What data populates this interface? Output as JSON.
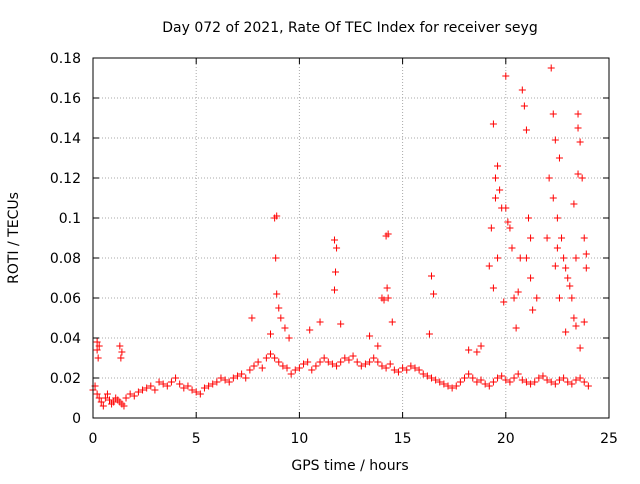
{
  "chart_data": {
    "type": "scatter",
    "title": "Day 072 of 2021, Rate Of TEC Index for receiver seyg",
    "xlabel": "GPS time / hours",
    "ylabel": "ROTI / TECUs",
    "xlim": [
      0,
      25
    ],
    "ylim": [
      0,
      0.18
    ],
    "xticks": [
      0,
      5,
      10,
      15,
      20,
      25
    ],
    "yticks": [
      0,
      0.02,
      0.04,
      0.06,
      0.08,
      0.1,
      0.12,
      0.14,
      0.16,
      0.18
    ],
    "xtick_labels": [
      "0",
      "5",
      "10",
      "15",
      "20",
      "25"
    ],
    "ytick_labels": [
      "0",
      "0.02",
      "0.04",
      "0.06",
      "0.08",
      "0.1",
      "0.12",
      "0.14",
      "0.16",
      "0.18"
    ],
    "grid": true,
    "legend": "none",
    "marker": "+",
    "color": "#ff0000",
    "x": [
      0.0,
      0.1,
      0.2,
      0.3,
      0.4,
      0.5,
      0.6,
      0.7,
      0.8,
      0.9,
      1.0,
      1.1,
      1.2,
      1.3,
      1.4,
      1.5,
      1.6,
      1.8,
      2.0,
      2.2,
      2.4,
      2.6,
      2.8,
      3.0,
      3.2,
      3.4,
      3.6,
      3.8,
      4.0,
      4.2,
      4.4,
      4.6,
      4.8,
      5.0,
      5.2,
      5.4,
      5.6,
      5.8,
      6.0,
      6.2,
      6.4,
      6.6,
      6.8,
      7.0,
      7.2,
      7.4,
      7.6,
      7.8,
      8.0,
      8.2,
      8.4,
      8.6,
      8.8,
      9.0,
      9.2,
      9.4,
      9.6,
      9.8,
      10.0,
      10.2,
      10.4,
      10.6,
      10.8,
      11.0,
      11.2,
      11.4,
      11.6,
      11.8,
      12.0,
      12.2,
      12.4,
      12.6,
      12.8,
      13.0,
      13.2,
      13.4,
      13.6,
      13.8,
      14.0,
      14.2,
      14.4,
      14.6,
      14.8,
      15.0,
      15.2,
      15.4,
      15.6,
      15.8,
      16.0,
      16.2,
      16.4,
      16.6,
      16.8,
      17.0,
      17.2,
      17.4,
      17.6,
      17.8,
      18.0,
      18.2,
      18.4,
      18.6,
      18.8,
      19.0,
      19.2,
      19.4,
      19.6,
      19.8,
      20.0,
      20.2,
      20.4,
      20.6,
      20.8,
      21.0,
      21.2,
      21.4,
      21.6,
      21.8,
      22.0,
      22.2,
      22.4,
      22.6,
      22.8,
      23.0,
      23.2,
      23.4,
      23.6,
      23.8,
      24.0,
      0.2,
      0.2,
      0.25,
      0.3,
      1.3,
      1.4,
      1.35,
      7.7,
      8.6,
      8.8,
      8.9,
      8.85,
      8.9,
      9.0,
      9.1,
      9.3,
      9.5,
      10.5,
      11.0,
      11.7,
      11.8,
      11.75,
      11.7,
      12.0,
      13.4,
      13.8,
      14.0,
      14.2,
      14.3,
      14.25,
      14.3,
      14.1,
      14.5,
      16.3,
      16.4,
      16.5,
      18.2,
      18.8,
      19.2,
      19.3,
      19.4,
      19.5,
      19.5,
      19.6,
      19.7,
      19.8,
      19.6,
      19.4,
      20.0,
      20.0,
      20.1,
      20.2,
      20.3,
      20.4,
      20.5,
      20.7,
      20.8,
      20.9,
      21.0,
      21.1,
      21.2,
      21.0,
      21.2,
      21.5,
      22.0,
      22.1,
      22.2,
      22.3,
      22.3,
      22.4,
      22.5,
      22.5,
      22.6,
      22.7,
      22.8,
      22.9,
      23.0,
      23.1,
      23.2,
      23.3,
      23.4,
      23.5,
      23.5,
      23.6,
      23.7,
      23.8,
      23.9,
      23.9,
      23.4,
      23.6,
      23.8,
      22.6,
      23.3,
      22.4,
      23.5,
      22.9,
      21.3,
      20.6,
      19.9,
      18.6
    ],
    "y": [
      0.014,
      0.016,
      0.012,
      0.01,
      0.008,
      0.006,
      0.01,
      0.012,
      0.009,
      0.007,
      0.008,
      0.01,
      0.009,
      0.008,
      0.007,
      0.006,
      0.01,
      0.012,
      0.011,
      0.013,
      0.014,
      0.015,
      0.016,
      0.014,
      0.018,
      0.017,
      0.016,
      0.018,
      0.02,
      0.017,
      0.015,
      0.016,
      0.014,
      0.013,
      0.012,
      0.015,
      0.016,
      0.017,
      0.018,
      0.02,
      0.019,
      0.018,
      0.02,
      0.021,
      0.022,
      0.02,
      0.024,
      0.026,
      0.028,
      0.025,
      0.03,
      0.032,
      0.03,
      0.028,
      0.026,
      0.025,
      0.022,
      0.024,
      0.025,
      0.027,
      0.028,
      0.024,
      0.026,
      0.028,
      0.03,
      0.028,
      0.027,
      0.026,
      0.028,
      0.03,
      0.029,
      0.031,
      0.028,
      0.026,
      0.027,
      0.028,
      0.03,
      0.028,
      0.026,
      0.025,
      0.027,
      0.024,
      0.023,
      0.025,
      0.024,
      0.026,
      0.025,
      0.024,
      0.022,
      0.021,
      0.02,
      0.019,
      0.018,
      0.017,
      0.016,
      0.015,
      0.016,
      0.018,
      0.02,
      0.022,
      0.02,
      0.018,
      0.019,
      0.017,
      0.016,
      0.018,
      0.02,
      0.021,
      0.019,
      0.018,
      0.02,
      0.022,
      0.019,
      0.018,
      0.017,
      0.018,
      0.02,
      0.021,
      0.019,
      0.018,
      0.017,
      0.019,
      0.02,
      0.018,
      0.017,
      0.019,
      0.02,
      0.018,
      0.016,
      0.038,
      0.034,
      0.03,
      0.036,
      0.036,
      0.033,
      0.03,
      0.05,
      0.042,
      0.1,
      0.101,
      0.08,
      0.062,
      0.055,
      0.05,
      0.045,
      0.04,
      0.044,
      0.048,
      0.089,
      0.085,
      0.073,
      0.064,
      0.047,
      0.041,
      0.036,
      0.06,
      0.091,
      0.092,
      0.065,
      0.06,
      0.059,
      0.048,
      0.042,
      0.071,
      0.062,
      0.034,
      0.036,
      0.076,
      0.095,
      0.147,
      0.12,
      0.11,
      0.126,
      0.114,
      0.105,
      0.08,
      0.065,
      0.171,
      0.105,
      0.098,
      0.095,
      0.085,
      0.06,
      0.045,
      0.08,
      0.164,
      0.156,
      0.144,
      0.1,
      0.09,
      0.08,
      0.07,
      0.06,
      0.09,
      0.12,
      0.175,
      0.152,
      0.11,
      0.139,
      0.1,
      0.085,
      0.13,
      0.09,
      0.08,
      0.075,
      0.07,
      0.066,
      0.06,
      0.05,
      0.08,
      0.152,
      0.145,
      0.138,
      0.12,
      0.09,
      0.075,
      0.082,
      0.046,
      0.035,
      0.048,
      0.06,
      0.107,
      0.076,
      0.122,
      0.043,
      0.054,
      0.063,
      0.058,
      0.033
    ]
  }
}
